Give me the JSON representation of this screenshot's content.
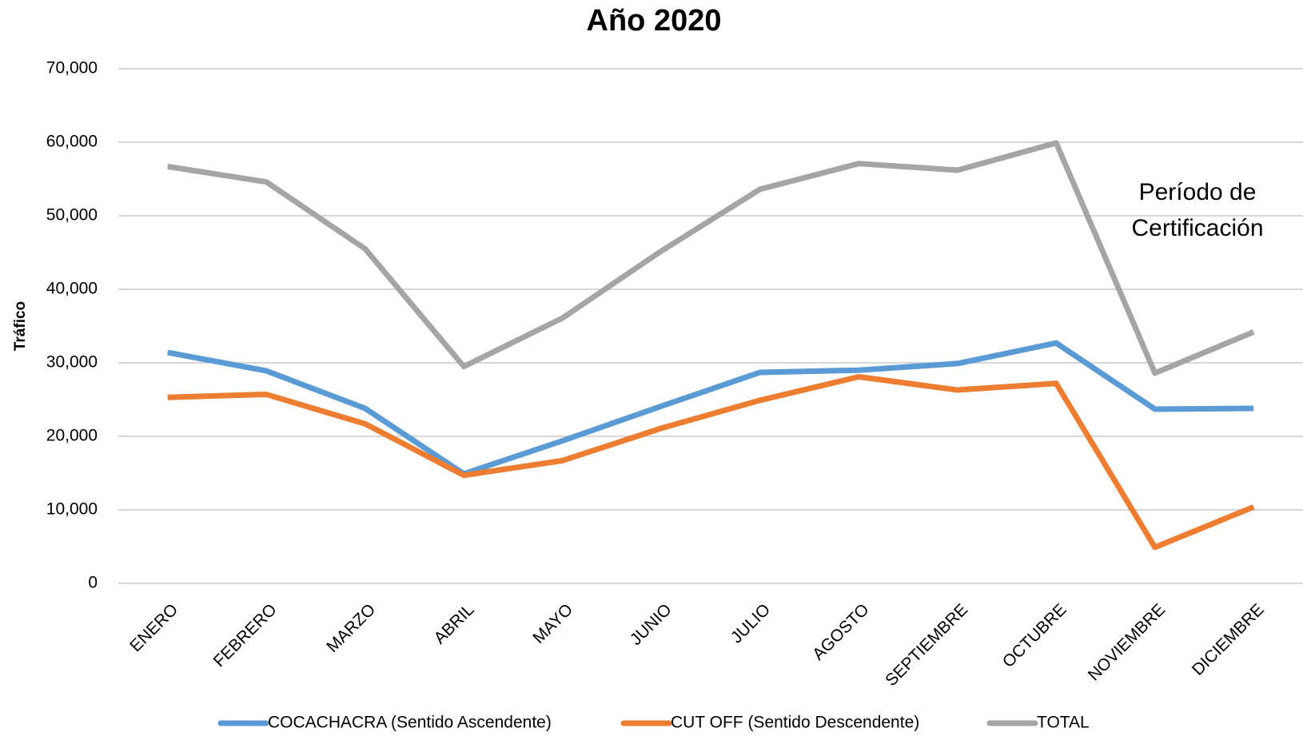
{
  "chart_data": {
    "type": "line",
    "title": "Año 2020",
    "y_label": "Tráfico",
    "annotation": [
      "Período de",
      "Certificación"
    ],
    "categories": [
      "ENERO",
      "FEBRERO",
      "MARZO",
      "ABRIL",
      "MAYO",
      "JUNIO",
      "JULIO",
      "AGOSTO",
      "SEPTIEMBRE",
      "OCTUBRE",
      "NOVIEMBRE",
      "DICIEMBRE"
    ],
    "series": [
      {
        "name": "COCACHACRA (Sentido Ascendente)",
        "color": "#5b9bd5",
        "values": [
          31400,
          28900,
          23800,
          14900,
          19400,
          24100,
          28700,
          29000,
          29900,
          32700,
          23700,
          23800
        ]
      },
      {
        "name": "CUT OFF (Sentido Descendente)",
        "color": "#ed7d31",
        "values": [
          25300,
          25700,
          21700,
          14700,
          16700,
          21100,
          24900,
          28100,
          26300,
          27200,
          4900,
          10400
        ]
      },
      {
        "name": "TOTAL",
        "color": "#a5a5a5",
        "values": [
          56700,
          54600,
          45500,
          29500,
          36100,
          45200,
          53600,
          57100,
          56200,
          59900,
          28600,
          34200
        ]
      }
    ],
    "ylim": [
      0,
      70000
    ],
    "yticks": [
      0,
      {
        "value": 10000,
        "label": "10,000"
      },
      {
        "value": 20000,
        "label": "20,000"
      },
      {
        "value": 30000,
        "label": "30,000"
      },
      {
        "value": 40000,
        "label": "40,000"
      },
      {
        "value": 50000,
        "label": "50,000"
      },
      {
        "value": 60000,
        "label": "60,000"
      },
      {
        "value": 70000,
        "label": "70,000"
      }
    ],
    "grid": true,
    "legend": "bottom"
  }
}
